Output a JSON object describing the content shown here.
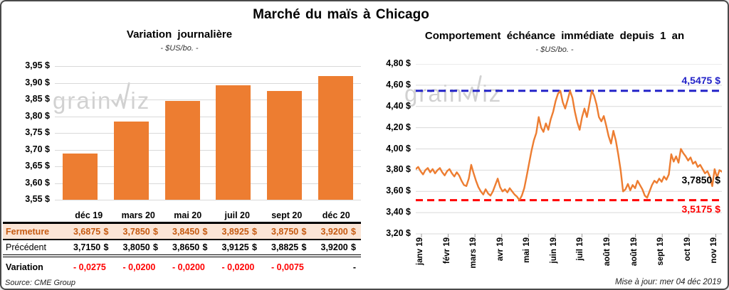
{
  "header": {
    "title": "Marché du maïs à Chicago"
  },
  "source_note": "Source: CME Group",
  "updated_note": "Mise à jour: mer 04 déc 2019",
  "watermark": {
    "left": "grain",
    "right": "iz",
    "logo_icon": "spike-line-icon"
  },
  "colors": {
    "orange": "#ED7D31",
    "peach": "#FBE5D6",
    "brown": "#C55A11",
    "red": "#FF0000",
    "blue": "#2323C8",
    "grid": "#D9D9D9",
    "watermark": "#C9C9C9",
    "tick": "#999999"
  },
  "chart_data": [
    {
      "type": "bar",
      "title": "Variation journalière",
      "subtitle": "- $US/bo. -",
      "categories": [
        "déc 19",
        "mars 20",
        "mai 20",
        "juil 20",
        "sept 20",
        "déc 20"
      ],
      "values": [
        3.6875,
        3.785,
        3.845,
        3.8925,
        3.875,
        3.92
      ],
      "ylabel": "$US/bo.",
      "ylim": [
        3.55,
        3.95
      ],
      "ytick_labels": [
        "3,95 $",
        "3,90 $",
        "3,85 $",
        "3,80 $",
        "3,75 $",
        "3,70 $",
        "3,65 $",
        "3,60 $",
        "3,55 $"
      ],
      "grid": true,
      "legend": "none"
    },
    {
      "type": "line",
      "title": "Comportement échéance immédiate depuis 1 an",
      "subtitle": "- $US/bo. -",
      "ylabel": "$US/bo.",
      "ylim": [
        3.2,
        4.8
      ],
      "ytick_labels": [
        "4,80 $",
        "4,60 $",
        "4,40 $",
        "4,20 $",
        "4,00 $",
        "3,80 $",
        "3,60 $",
        "3,40 $",
        "3,20 $"
      ],
      "x_tick_labels": [
        "janv 19",
        "févr 19",
        "mars 19",
        "avr 19",
        "mai 19",
        "juin 19",
        "juil 19",
        "août 19",
        "août 19",
        "sept 19",
        "oct 19",
        "nov 19"
      ],
      "grid": true,
      "legend": "none",
      "max_line": {
        "value": 4.5475,
        "label": "4,5475 $"
      },
      "min_line": {
        "value": 3.5175,
        "label": "3,5175 $"
      },
      "last_point": {
        "value": 3.785,
        "label": "3,7850 $"
      },
      "values": [
        3.81,
        3.83,
        3.79,
        3.76,
        3.8,
        3.82,
        3.78,
        3.81,
        3.77,
        3.8,
        3.82,
        3.78,
        3.75,
        3.79,
        3.81,
        3.77,
        3.74,
        3.78,
        3.75,
        3.7,
        3.66,
        3.65,
        3.72,
        3.85,
        3.77,
        3.7,
        3.64,
        3.6,
        3.57,
        3.62,
        3.58,
        3.56,
        3.6,
        3.66,
        3.72,
        3.64,
        3.6,
        3.62,
        3.59,
        3.63,
        3.6,
        3.57,
        3.55,
        3.5175,
        3.56,
        3.63,
        3.74,
        3.86,
        3.98,
        4.08,
        4.15,
        4.3,
        4.2,
        4.16,
        4.24,
        4.18,
        4.28,
        4.35,
        4.45,
        4.52,
        4.547,
        4.44,
        4.38,
        4.46,
        4.547,
        4.48,
        4.35,
        4.25,
        4.18,
        4.3,
        4.38,
        4.3,
        4.42,
        4.547,
        4.5,
        4.42,
        4.3,
        4.26,
        4.31,
        4.22,
        4.12,
        4.05,
        4.17,
        4.08,
        3.95,
        3.8,
        3.6,
        3.62,
        3.67,
        3.61,
        3.66,
        3.63,
        3.7,
        3.66,
        3.62,
        3.56,
        3.54,
        3.6,
        3.66,
        3.7,
        3.68,
        3.72,
        3.69,
        3.74,
        3.71,
        3.76,
        3.95,
        3.88,
        3.93,
        3.87,
        4.0,
        3.96,
        3.93,
        3.89,
        3.92,
        3.86,
        3.88,
        3.83,
        3.85,
        3.81,
        3.77,
        3.79,
        3.74,
        3.65,
        3.81,
        3.73,
        3.8,
        3.785
      ]
    }
  ],
  "table": {
    "col_headers": [
      "déc 19",
      "mars 20",
      "mai 20",
      "juil 20",
      "sept 20",
      "déc 20"
    ],
    "rows": [
      {
        "label": "Fermeture",
        "style": "fermeture",
        "unit": "$",
        "values": [
          "3,6875",
          "3,7850",
          "3,8450",
          "3,8925",
          "3,8750",
          "3,9200"
        ]
      },
      {
        "label": "Précédent",
        "style": "precedent",
        "unit": "$",
        "values": [
          "3,7150",
          "3,8050",
          "3,8650",
          "3,9125",
          "3,8825",
          "3,9200"
        ]
      },
      {
        "label": "Variation",
        "style": "variation",
        "unit": "",
        "values": [
          "- 0,0275",
          "- 0,0200",
          "- 0,0200",
          "- 0,0200",
          "- 0,0075",
          "-"
        ]
      }
    ]
  }
}
